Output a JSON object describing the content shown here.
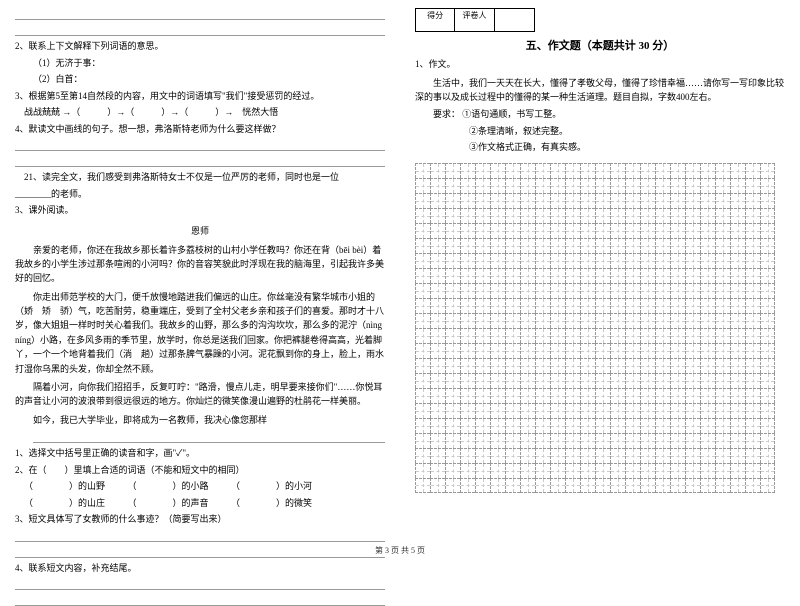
{
  "leftCol": {
    "item2": "2、联系上下文解释下列词语的意思。",
    "item2a": "（1）无济于事：",
    "item2b": "（2）白首：",
    "item3": "3、根据第5至第14自然段的内容，用文中的词语填写\"我们\"接受惩罚的经过。",
    "item3b": "战战兢兢 →（　　　）→（　　　）→（　　　）→　恍然大悟",
    "item4": "4、默读文中画线的句子。想一想，弗洛斯特老师为什么要这样做？",
    "item21": "21、读完全文，我们感受到弗洛斯特女士不仅是一位严厉的老师，同时也是一位",
    "item21b": "________的老师。",
    "q3": "3、课外阅读。",
    "titleEnshi": "恩师",
    "p1": "亲爱的老师，你还在我故乡那长着许多荔枝树的山村小学任教吗？你还在背（bēi  bèi）着我故乡的小学生涉过那条喧闹的小河吗？你的音容笑貌此时浮现在我的脑海里，引起我许多美好的回忆。",
    "p2": "你走出师范学校的大门，便千放慢地踏进我们偏远的山庄。你丝毫没有繁华城市小姐的（娇　矫　骄）气，吃苦耐劳，稳重端庄，受到了全村父老乡亲和孩子们的喜爱。那时才十八岁，像大姐姐一样时时关心着我们。我故乡的山野，那么多的沟沟坎坎，那么多的泥泞（nìng  níng）小路，在多风多雨的季节里，放学时，你总是送我们回家。你把裤腿卷得高高，光着脚丫，一个一个地背着我们（淌　趟）过那条脾气暴躁的小河。泥花飘到你的身上，脸上，雨水打湿你乌黑的头发，你却全然不顾。",
    "p3": "隔着小河，向你我们招招手，反复叮咛：\"路滑，慢点儿走，明早要来接你们\"……你悦耳的声音让小河的波浪带到很远很远的地方。你灿烂的微笑像漫山遍野的杜鹃花一样美丽。",
    "p4": "如今，我已大学毕业，即将成为一名教师，我决心像您那样",
    "q1": "1、选择文中括号里正确的读音和字，画\"✓\"。",
    "q2": "2、在（　　）里填上合适的词语（不能和短文中的相同）",
    "q2a": "（　　　　）的山野　　　（　　　　）的小路　　　（　　　　）的小河",
    "q2b": "（　　　　）的山庄　　　（　　　　）的声音　　　（　　　　）的微笑",
    "q3b": "3、短文具体写了女教师的什么事迹？（简要写出来）",
    "q4": "4、联系短文内容，补充结尾。"
  },
  "rightCol": {
    "scoreLabel1": "得分",
    "scoreLabel2": "评卷人",
    "title5": "五、作文题（本题共计 30 分）",
    "zw1": "1、作文。",
    "zw2": "生活中，我们一天天在长大，懂得了孝敬父母，懂得了珍惜幸福……请你写一写印象比较深的事以及成长过程中的懂得的某一种生活道理。题目自拟，字数400左右。",
    "zw3": "要求： ①语句通顺，书写工整。",
    "zw4": "　　　　②条理清晰，叙述完整。",
    "zw5": "　　　　③作文格式正确，有真实感。",
    "gridRows": 22,
    "gridCols": 24
  },
  "footer": "第 3 页  共 5 页"
}
